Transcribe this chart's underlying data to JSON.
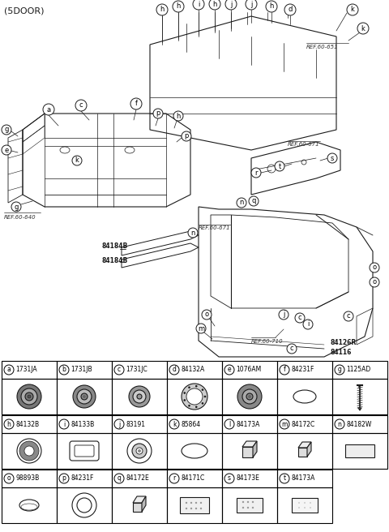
{
  "title": "(5DOOR)",
  "bg_color": "#ffffff",
  "line_color": "#1a1a1a",
  "table_border_color": "#000000",
  "parts_table": {
    "row1": [
      {
        "label": "a",
        "code": "1731JA"
      },
      {
        "label": "b",
        "code": "1731JB"
      },
      {
        "label": "c",
        "code": "1731JC"
      },
      {
        "label": "d",
        "code": "84132A"
      },
      {
        "label": "e",
        "code": "1076AM"
      },
      {
        "label": "f",
        "code": "84231F"
      },
      {
        "label": "g",
        "code": "1125AD"
      }
    ],
    "row2": [
      {
        "label": "h",
        "code": "84132B"
      },
      {
        "label": "i",
        "code": "84133B"
      },
      {
        "label": "j",
        "code": "83191"
      },
      {
        "label": "k",
        "code": "85864"
      },
      {
        "label": "l",
        "code": "84173A"
      },
      {
        "label": "m",
        "code": "84172C"
      },
      {
        "label": "n",
        "code": "84182W"
      }
    ],
    "row3": [
      {
        "label": "o",
        "code": "98893B"
      },
      {
        "label": "p",
        "code": "84231F"
      },
      {
        "label": "q",
        "code": "84172E"
      },
      {
        "label": "r",
        "code": "84171C"
      },
      {
        "label": "s",
        "code": "84173E"
      },
      {
        "label": "t",
        "code": "84173A"
      }
    ]
  }
}
